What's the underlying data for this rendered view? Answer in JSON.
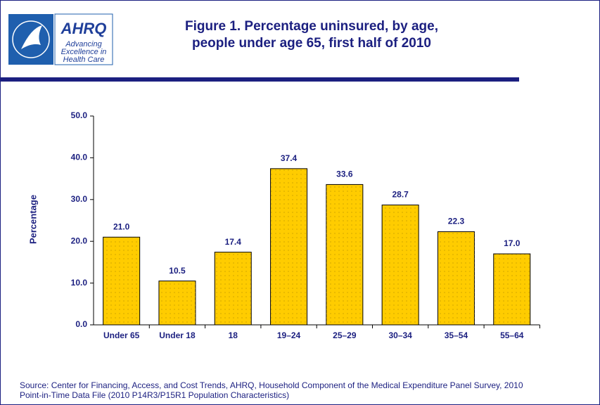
{
  "logo": {
    "name": "AHRQ",
    "tagline": [
      "Advancing",
      "Excellence in",
      "Health Care"
    ]
  },
  "chart_data": {
    "type": "bar",
    "title": [
      "Figure 1. Percentage uninsured, by age,",
      "people under age 65, first half of 2010"
    ],
    "y_label": "Percentage",
    "categories": [
      "Under 65",
      "Under 18",
      "18",
      "19–24",
      "25–29",
      "30–34",
      "35–54",
      "55–64"
    ],
    "values": [
      21.0,
      10.5,
      17.4,
      37.4,
      33.6,
      28.7,
      22.3,
      17.0
    ],
    "value_labels": [
      "21.0",
      "10.5",
      "17.4",
      "37.4",
      "33.6",
      "28.7",
      "22.3",
      "17.0"
    ],
    "color": "#ffcc00",
    "ylim": [
      0,
      50
    ],
    "yticks": [
      {
        "value": 0,
        "label": "0.0"
      },
      {
        "value": 10,
        "label": "10.0"
      },
      {
        "value": 20,
        "label": "20.0"
      },
      {
        "value": 30,
        "label": "30.0"
      },
      {
        "value": 40,
        "label": "40.0"
      },
      {
        "value": 50,
        "label": "50.0"
      }
    ],
    "source": [
      "Source: Center for Financing, Access, and Cost Trends, AHRQ, Household Component of the Medical Expenditure Panel Survey,  2010",
      "Point-in-Time Data File (2010 P14R3/P15R1 Population Characteristics)"
    ]
  }
}
